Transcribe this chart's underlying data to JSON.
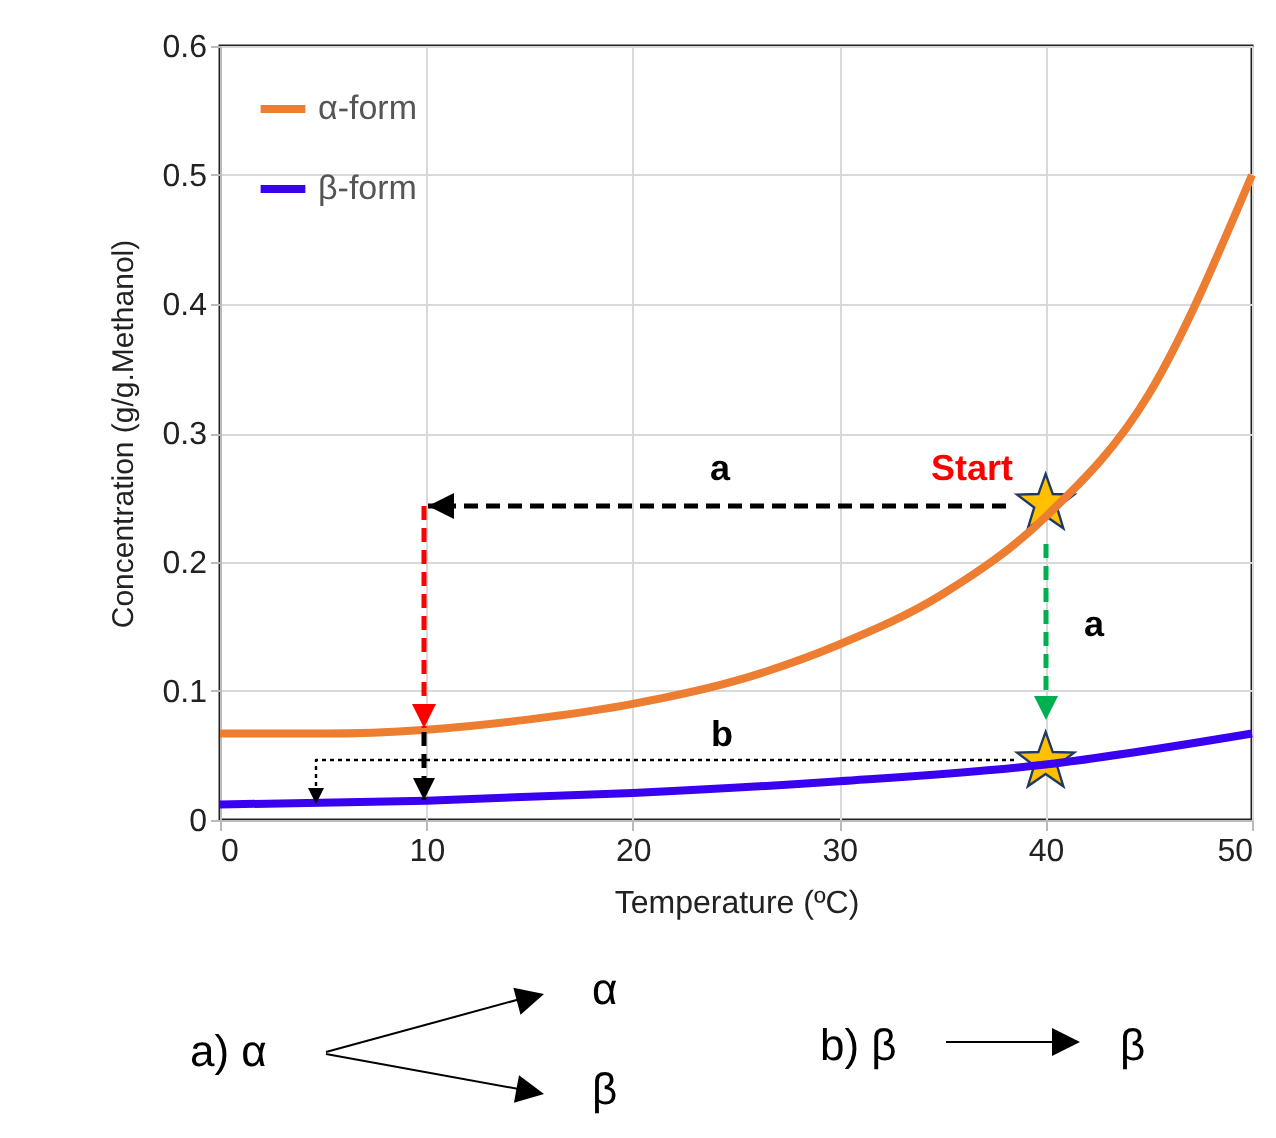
{
  "chart_data": {
    "type": "line",
    "xlabel": "Temperature (ºC)",
    "ylabel": "Concentration (g/g.Methanol)",
    "xlim": [
      0,
      50
    ],
    "xticks": [
      0,
      10,
      20,
      30,
      40,
      50
    ],
    "ylim": [
      0,
      0.6
    ],
    "yticks": [
      0,
      0.1,
      0.2,
      0.3,
      0.4,
      0.5,
      0.6
    ],
    "grid": true,
    "legend": "top left",
    "series": [
      {
        "type": "scatter",
        "marker": "star",
        "color": "#ffc000",
        "x": [
          40,
          40
        ],
        "values": [
          0.245,
          0.045
        ]
      },
      {
        "name": "α-form",
        "color": "#ed7d31",
        "x": [
          0,
          5,
          10,
          15,
          20,
          25,
          30,
          35,
          40,
          45,
          50
        ],
        "values": [
          0.067,
          0.067,
          0.07,
          0.078,
          0.09,
          0.108,
          0.136,
          0.175,
          0.235,
          0.33,
          0.5
        ]
      },
      {
        "name": "β-form",
        "color": "#3a00f0",
        "x": [
          0,
          10,
          20,
          30,
          40,
          50
        ],
        "values": [
          0.012,
          0.015,
          0.021,
          0.03,
          0.043,
          0.067
        ]
      }
    ],
    "annotations": [
      "a",
      "Start",
      "a",
      "b",
      "a)  α",
      "α",
      "β",
      "b)  β",
      "β"
    ]
  }
}
